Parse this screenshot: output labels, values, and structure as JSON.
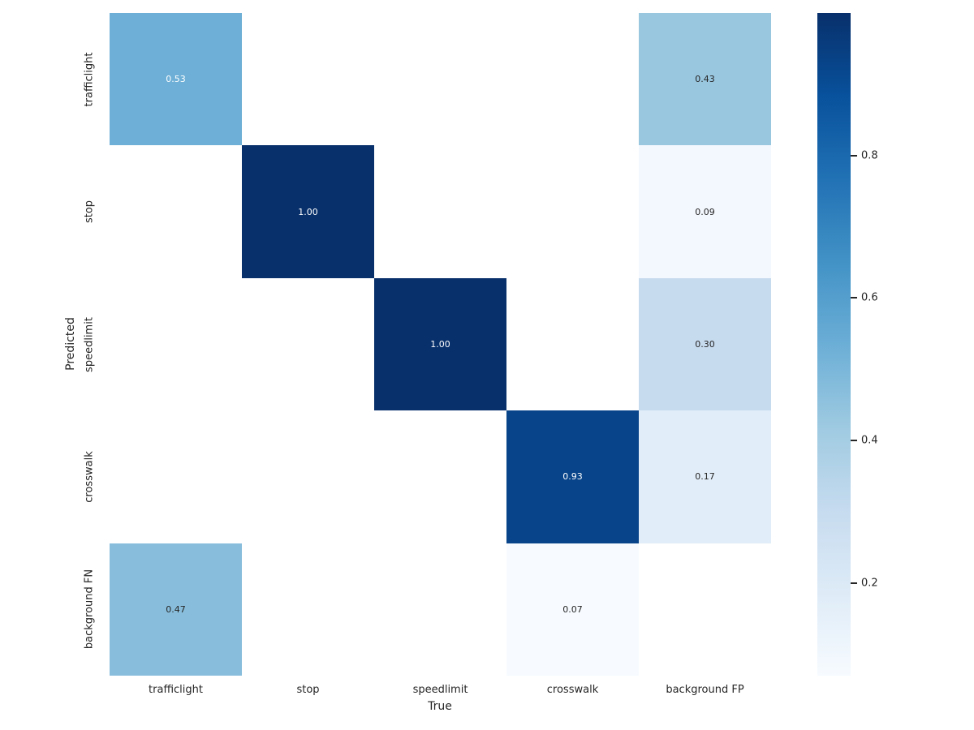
{
  "chart_data": {
    "type": "heatmap",
    "title": "",
    "xlabel": "True",
    "ylabel": "Predicted",
    "x_categories": [
      "trafficlight",
      "stop",
      "speedlimit",
      "crosswalk",
      "background FP"
    ],
    "y_categories": [
      "trafficlight",
      "stop",
      "speedlimit",
      "crosswalk",
      "background FN"
    ],
    "matrix": [
      [
        0.53,
        null,
        null,
        null,
        0.43
      ],
      [
        null,
        1.0,
        null,
        null,
        0.09
      ],
      [
        null,
        null,
        1.0,
        null,
        0.3
      ],
      [
        null,
        null,
        null,
        0.93,
        0.17
      ],
      [
        0.47,
        null,
        null,
        0.07,
        null
      ]
    ],
    "annotation_decimals": 2,
    "colorbar": {
      "position": "right",
      "ticks": [
        0.2,
        0.4,
        0.6,
        0.8
      ],
      "vmin": 0.07,
      "vmax": 1.0,
      "cmap_name": "Blues",
      "cmap_anchors": [
        "#f7fbff",
        "#deebf7",
        "#c6dbef",
        "#9ecae1",
        "#6baed6",
        "#4292c6",
        "#2171b5",
        "#08519c",
        "#08306b"
      ]
    },
    "colors": {
      "background": "#ffffff",
      "empty_cell": "#ffffff",
      "tick_text": "#262626",
      "annot_dark": "#262626",
      "annot_light": "#ffffff"
    },
    "layout_hints": {
      "grid": "off",
      "legend": "none",
      "annotated": true
    }
  }
}
